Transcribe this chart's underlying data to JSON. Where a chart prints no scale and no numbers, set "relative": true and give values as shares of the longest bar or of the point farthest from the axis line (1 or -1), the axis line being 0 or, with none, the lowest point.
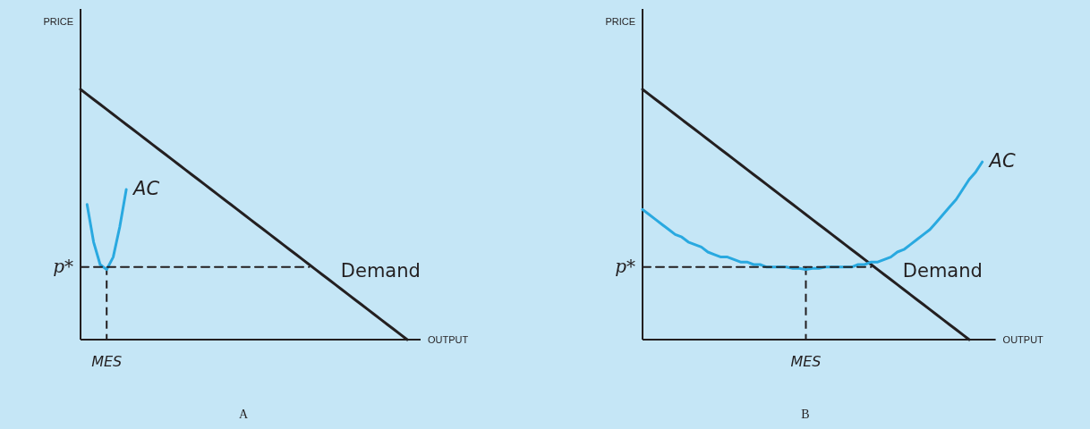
{
  "chart_data": [
    {
      "type": "line",
      "title": "A",
      "xlabel": "OUTPUT",
      "ylabel": "PRICE",
      "relative": true,
      "legend": false,
      "marker": "none",
      "categories": [
        null,
        null,
        null,
        null,
        null,
        null,
        null,
        null,
        null,
        null,
        null,
        null,
        null,
        null,
        null,
        null,
        null,
        null,
        null,
        null,
        null,
        null,
        null,
        null,
        null,
        null,
        null,
        null,
        null,
        null,
        null,
        null,
        null,
        null,
        null,
        null,
        null,
        null,
        null,
        null,
        null,
        null,
        null,
        null,
        null,
        null,
        null,
        null,
        null,
        null,
        null
      ],
      "series": [
        {
          "name": "Demand",
          "color": "#231f20",
          "values": [
            1,
            0.98,
            0.96,
            0.94,
            0.92,
            0.9,
            0.88,
            0.86,
            0.84,
            0.82,
            0.8,
            0.78,
            0.76,
            0.74,
            0.72,
            0.7,
            0.68,
            0.66,
            0.64,
            0.62,
            0.6,
            0.58,
            0.56,
            0.54,
            0.52,
            0.5,
            0.48,
            0.46,
            0.44,
            0.42,
            0.4,
            0.38,
            0.36,
            0.34,
            0.32,
            0.3,
            0.28,
            0.26,
            0.24,
            0.22,
            0.2,
            0.18,
            0.16,
            0.14,
            0.12,
            0.1,
            0.08,
            0.06,
            0.04,
            0.02,
            0
          ]
        },
        {
          "name": "AC",
          "color": "#29a9e0",
          "values": [
            null,
            0.54,
            0.39,
            0.3,
            0.28,
            0.33,
            0.45,
            0.6,
            null,
            null,
            null,
            null,
            null,
            null,
            null,
            null,
            null,
            null,
            null,
            null,
            null,
            null,
            null,
            null,
            null,
            null,
            null,
            null,
            null,
            null,
            null,
            null,
            null,
            null,
            null,
            null,
            null,
            null,
            null,
            null,
            null,
            null,
            null,
            null,
            null,
            null,
            null,
            null,
            null,
            null,
            null
          ]
        },
        {
          "color": "#231f20",
          "line_style": "dashed",
          "values": [
            0.29,
            0.29,
            0.29,
            0.29,
            0.29,
            0.29,
            0.29,
            0.29,
            0.29,
            0.29,
            0.29,
            0.29,
            0.29,
            0.29,
            0.29,
            0.29,
            0.29,
            0.29,
            0.29,
            0.29,
            0.29,
            0.29,
            0.29,
            0.29,
            0.29,
            0.29,
            0.29,
            0.29,
            0.29,
            0.29,
            0.29,
            0.29,
            0.29,
            0.29,
            0.29,
            0.29,
            null,
            null,
            null,
            null,
            null,
            null,
            null,
            null,
            null,
            null,
            null,
            null,
            null,
            null,
            null
          ]
        }
      ],
      "annotations": [
        "p*",
        "MES"
      ]
    },
    {
      "type": "line",
      "title": "B",
      "xlabel": "OUTPUT",
      "ylabel": "PRICE",
      "relative": true,
      "legend": false,
      "marker": "none",
      "categories": [
        null,
        null,
        null,
        null,
        null,
        null,
        null,
        null,
        null,
        null,
        null,
        null,
        null,
        null,
        null,
        null,
        null,
        null,
        null,
        null,
        null,
        null,
        null,
        null,
        null,
        null,
        null,
        null,
        null,
        null,
        null,
        null,
        null,
        null,
        null,
        null,
        null,
        null,
        null,
        null,
        null,
        null,
        null,
        null,
        null,
        null,
        null,
        null,
        null,
        null,
        null,
        null,
        null
      ],
      "series": [
        {
          "name": "Demand",
          "color": "#231f20",
          "values": [
            1,
            0.98,
            0.96,
            0.94,
            0.92,
            0.9,
            0.88,
            0.86,
            0.84,
            0.82,
            0.8,
            0.78,
            0.76,
            0.74,
            0.72,
            0.7,
            0.68,
            0.66,
            0.64,
            0.62,
            0.6,
            0.58,
            0.56,
            0.54,
            0.52,
            0.5,
            0.48,
            0.46,
            0.44,
            0.42,
            0.4,
            0.38,
            0.36,
            0.34,
            0.32,
            0.3,
            0.28,
            0.26,
            0.24,
            0.22,
            0.2,
            0.18,
            0.16,
            0.14,
            0.12,
            0.1,
            0.08,
            0.06,
            0.04,
            0.02,
            0,
            null,
            null
          ]
        },
        {
          "name": "AC",
          "color": "#29a9e0",
          "values": [
            0.52,
            0.5,
            0.48,
            0.46,
            0.44,
            0.42,
            0.41,
            0.39,
            0.38,
            0.37,
            0.35,
            0.34,
            0.33,
            0.33,
            0.32,
            0.31,
            0.31,
            0.3,
            0.3,
            0.29,
            0.29,
            0.29,
            0.29,
            0.285,
            0.285,
            0.28,
            0.285,
            0.285,
            0.29,
            0.29,
            0.29,
            0.29,
            0.29,
            0.3,
            0.3,
            0.31,
            0.31,
            0.32,
            0.33,
            0.35,
            0.36,
            0.38,
            0.4,
            0.42,
            0.44,
            0.47,
            0.5,
            0.53,
            0.56,
            0.6,
            0.64,
            0.67,
            0.71
          ]
        },
        {
          "color": "#231f20",
          "line_style": "dashed",
          "values": [
            0.29,
            0.29,
            0.29,
            0.29,
            0.29,
            0.29,
            0.29,
            0.29,
            0.29,
            0.29,
            0.29,
            0.29,
            0.29,
            0.29,
            0.29,
            0.29,
            0.29,
            0.29,
            0.29,
            0.29,
            0.29,
            0.29,
            0.29,
            0.29,
            0.29,
            0.29,
            0.29,
            0.29,
            0.29,
            0.29,
            0.29,
            0.29,
            0.29,
            0.29,
            0.29,
            0.29,
            null,
            null,
            null,
            null,
            null,
            null,
            null,
            null,
            null,
            null,
            null,
            null,
            null,
            null,
            null,
            null,
            null
          ]
        }
      ],
      "annotations": [
        "p*",
        "MES"
      ]
    }
  ]
}
